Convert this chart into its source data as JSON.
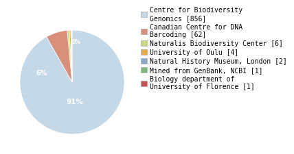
{
  "labels": [
    "Centre for Biodiversity\nGenomics [856]",
    "Canadian Centre for DNA\nBarcoding [62]",
    "Naturalis Biodiversity Center [6]",
    "University of Oulu [4]",
    "Natural History Museum, London [2]",
    "Mined from GenBank, NCBI [1]",
    "Biology department of\nUniversity of Florence [1]"
  ],
  "values": [
    856,
    62,
    6,
    4,
    2,
    1,
    1
  ],
  "colors": [
    "#c5d8e8",
    "#d9907a",
    "#ccd97a",
    "#e8a84c",
    "#8ba8c8",
    "#7db87d",
    "#c85050"
  ],
  "background_color": "#ffffff",
  "font_size": 7.0,
  "pie_text_color": "white",
  "startangle": 90
}
